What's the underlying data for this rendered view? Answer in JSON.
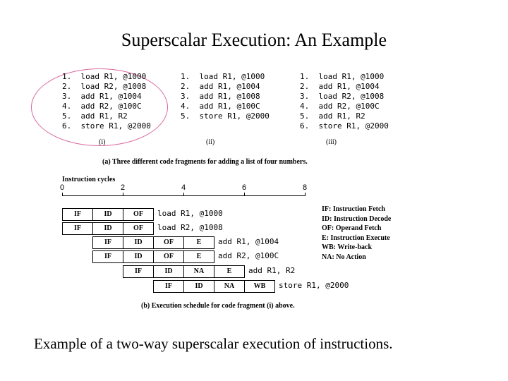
{
  "title": "Superscalar Execution: An Example",
  "fragments": [
    {
      "label": "(i)",
      "lines": [
        "1.  load R1, @1000",
        "2.  load R2, @1008",
        "3.  add R1, @1004",
        "4.  add R2, @100C",
        "5.  add R1, R2",
        "6.  store R1, @2000"
      ]
    },
    {
      "label": "(ii)",
      "lines": [
        "1.  load R1, @1000",
        "2.  add R1, @1004",
        "3.  add R1, @1008",
        "4.  add R1, @100C",
        "5.  store R1, @2000"
      ]
    },
    {
      "label": "(iii)",
      "lines": [
        "1.  load R1, @1000",
        "2.  add R1, @1004",
        "3.  load R2, @1008",
        "4.  add R2, @100C",
        "5.  add R1, R2",
        "6.  store R1, @2000"
      ]
    }
  ],
  "caption_a": "(a) Three different code fragments for adding a list of four numbers.",
  "schedule": {
    "axis_title": "Instruction cycles",
    "ticks": [
      "0",
      "2",
      "4",
      "6",
      "8"
    ],
    "rows": [
      {
        "start": 0,
        "stages": [
          "IF",
          "ID",
          "OF"
        ],
        "instruction": "load R1, @1000"
      },
      {
        "start": 0,
        "stages": [
          "IF",
          "ID",
          "OF"
        ],
        "instruction": "load R2, @1008"
      },
      {
        "start": 1,
        "stages": [
          "IF",
          "ID",
          "OF",
          "E"
        ],
        "instruction": "add R1, @1004"
      },
      {
        "start": 1,
        "stages": [
          "IF",
          "ID",
          "OF",
          "E"
        ],
        "instruction": "add R2, @100C"
      },
      {
        "start": 2,
        "stages": [
          "IF",
          "ID",
          "NA",
          "E"
        ],
        "instruction": "add R1, R2"
      },
      {
        "start": 3,
        "stages": [
          "IF",
          "ID",
          "NA",
          "WB"
        ],
        "instruction": "store R1, @2000"
      }
    ],
    "legend": [
      "IF: Instruction Fetch",
      "ID: Instruction Decode",
      "OF: Operand Fetch",
      "E: Instruction Execute",
      "WB: Write-back",
      "NA: No Action"
    ]
  },
  "caption_b": "(b) Execution schedule for code fragment (i) above.",
  "bottom_text": "Example of a two-way superscalar execution of instructions."
}
